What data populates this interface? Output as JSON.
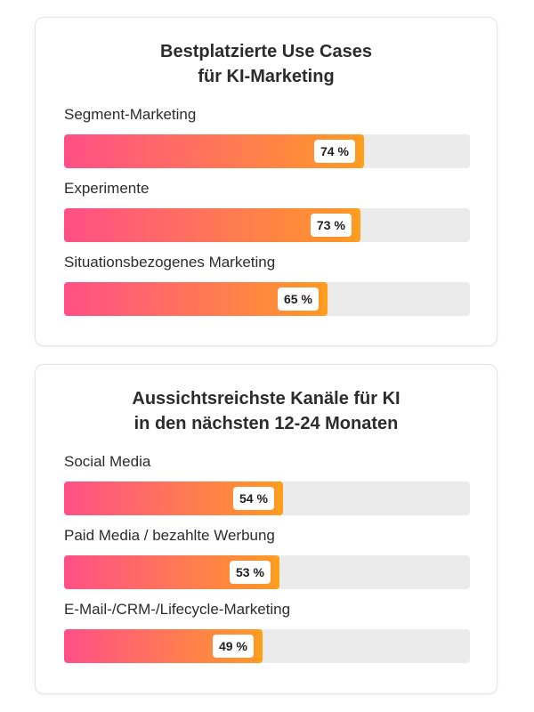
{
  "chart_data": [
    {
      "type": "bar",
      "orientation": "horizontal",
      "title": [
        "Bestplatzierte Use Cases",
        "für KI-Marketing"
      ],
      "categories": [
        "Segment-Marketing",
        "Experimente",
        "Situationsbezogenes Marketing"
      ],
      "values": [
        74,
        73,
        65
      ],
      "value_labels": [
        "74 %",
        "73 %",
        "65 %"
      ],
      "xlim": [
        0,
        100
      ],
      "grid": false,
      "colors": {
        "gradient_start": "#ff4f87",
        "gradient_end": "#ff9a23",
        "track": "#ebebeb"
      }
    },
    {
      "type": "bar",
      "orientation": "horizontal",
      "title": [
        "Aussichtsreichste Kanäle für KI",
        "in den nächsten 12-24 Monaten"
      ],
      "categories": [
        "Social Media",
        "Paid Media / bezahlte Werbung",
        "E-Mail-/CRM-/Lifecycle-Marketing"
      ],
      "values": [
        54,
        53,
        49
      ],
      "value_labels": [
        "54 %",
        "53 %",
        "49 %"
      ],
      "xlim": [
        0,
        100
      ],
      "grid": false,
      "colors": {
        "gradient_start": "#ff4f87",
        "gradient_end": "#ff9a23",
        "track": "#ebebeb"
      }
    }
  ]
}
